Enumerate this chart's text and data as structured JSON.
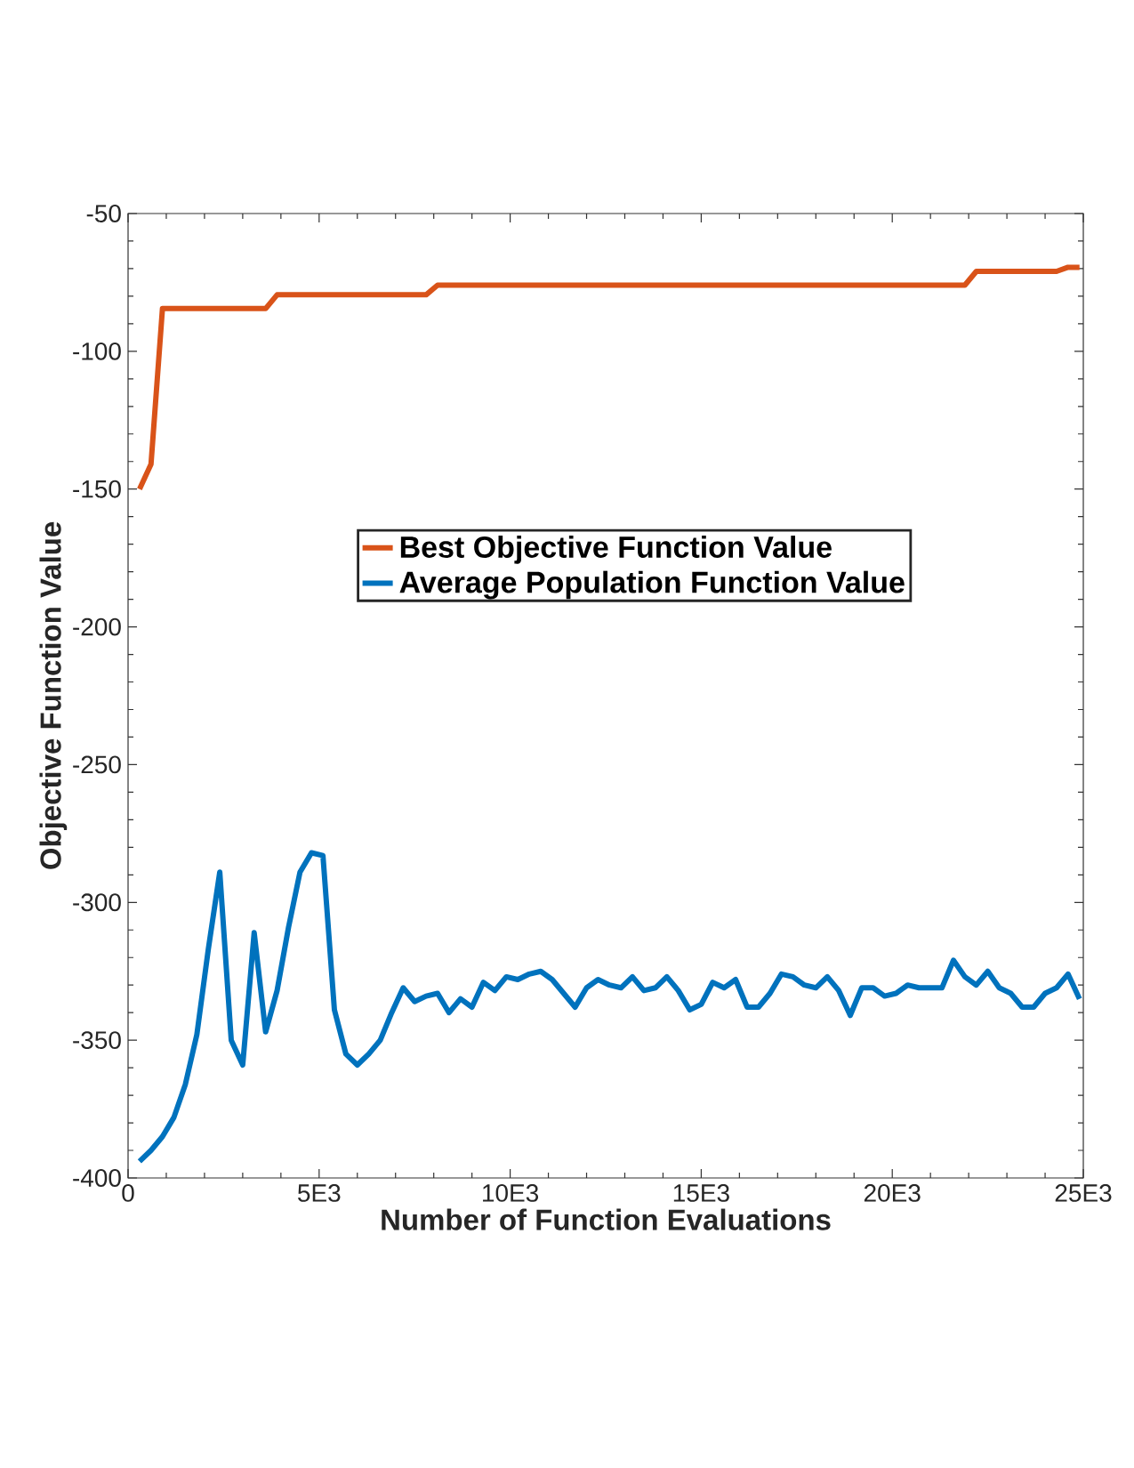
{
  "chart_data": {
    "type": "line",
    "xlabel": "Number of Function Evaluations",
    "ylabel": "Objective Function Value",
    "x": [
      300,
      600,
      900,
      1200,
      1500,
      1800,
      2100,
      2400,
      2700,
      3000,
      3300,
      3600,
      3900,
      4200,
      4500,
      4800,
      5100,
      5400,
      5700,
      6000,
      6300,
      6600,
      6900,
      7200,
      7500,
      7800,
      8100,
      8400,
      8700,
      9000,
      9300,
      9600,
      9900,
      10200,
      10500,
      10800,
      11100,
      11400,
      11700,
      12000,
      12300,
      12600,
      12900,
      13200,
      13500,
      13800,
      14100,
      14400,
      14700,
      15000,
      15300,
      15600,
      15900,
      16200,
      16500,
      16800,
      17100,
      17400,
      17700,
      18000,
      18300,
      18600,
      18900,
      19200,
      19500,
      19800,
      20100,
      20400,
      20700,
      21000,
      21300,
      21600,
      21900,
      22200,
      22500,
      22800,
      23100,
      23400,
      23700,
      24000,
      24300,
      24600,
      24900
    ],
    "series": [
      {
        "name": "Best Objective Function Value",
        "color": "#d95319",
        "values": [
          -150,
          -141,
          -84.5,
          -84.5,
          -84.5,
          -84.5,
          -84.5,
          -84.5,
          -84.5,
          -84.5,
          -84.5,
          -84.5,
          -79.5,
          -79.5,
          -79.5,
          -79.5,
          -79.5,
          -79.5,
          -79.5,
          -79.5,
          -79.5,
          -79.5,
          -79.5,
          -79.5,
          -79.5,
          -79.5,
          -76,
          -76,
          -76,
          -76,
          -76,
          -76,
          -76,
          -76,
          -76,
          -76,
          -76,
          -76,
          -76,
          -76,
          -76,
          -76,
          -76,
          -76,
          -76,
          -76,
          -76,
          -76,
          -76,
          -76,
          -76,
          -76,
          -76,
          -76,
          -76,
          -76,
          -76,
          -76,
          -76,
          -76,
          -76,
          -76,
          -76,
          -76,
          -76,
          -76,
          -76,
          -76,
          -76,
          -76,
          -76,
          -76,
          -76,
          -71,
          -71,
          -71,
          -71,
          -71,
          -71,
          -71,
          -71,
          -69.5,
          -69.5
        ]
      },
      {
        "name": "Average Population Function Value",
        "color": "#0072bd",
        "values": [
          -394,
          -390,
          -385,
          -378,
          -366,
          -348,
          -317,
          -289,
          -350,
          -359,
          -311,
          -347,
          -332,
          -309,
          -289,
          -282,
          -283,
          -339,
          -355,
          -359,
          -355,
          -350,
          -340,
          -331,
          -336,
          -334,
          -333,
          -340,
          -335,
          -338,
          -329,
          -332,
          -327,
          -328,
          -326,
          -325,
          -328,
          -333,
          -338,
          -331,
          -328,
          -330,
          -331,
          -327,
          -332,
          -331,
          -327,
          -332,
          -339,
          -337,
          -329,
          -331,
          -328,
          -338,
          -338,
          -333,
          -326,
          -327,
          -330,
          -331,
          -327,
          -332,
          -341,
          -331,
          -331,
          -334,
          -333,
          -330,
          -331,
          -331,
          -331,
          -321,
          -327,
          -330,
          -325,
          -331,
          -333,
          -338,
          -338,
          -333,
          -331,
          -326,
          -335
        ]
      }
    ],
    "xlim": [
      0,
      25000
    ],
    "ylim": [
      -400,
      -50
    ],
    "xticks": [
      0,
      {
        "value": 5000,
        "label": "5E3"
      },
      {
        "value": 10000,
        "label": "10E3"
      },
      {
        "value": 15000,
        "label": "15E3"
      },
      {
        "value": 20000,
        "label": "20E3"
      },
      {
        "value": 25000,
        "label": "25E3"
      }
    ],
    "yticks": [
      -400,
      -350,
      -300,
      -250,
      -200,
      -150,
      -100,
      -50
    ],
    "grid": false,
    "legend": "center",
    "marker": "none",
    "line_style": "solid"
  }
}
